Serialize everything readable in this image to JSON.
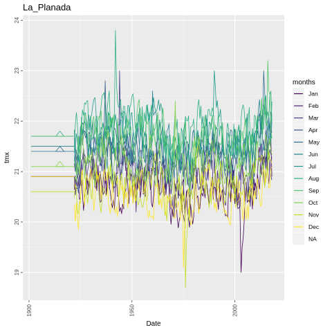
{
  "chart_data": {
    "type": "line",
    "title": "La_Planada",
    "xlabel": "Date",
    "ylabel": "tmx",
    "xlim": [
      1897,
      2024
    ],
    "ylim": [
      18.45,
      24.1
    ],
    "x_ticks": [
      1900,
      1950,
      2000
    ],
    "y_ticks": [
      19,
      20,
      21,
      22,
      23,
      24
    ],
    "grid": true,
    "legend_position": "right",
    "legend_title": "months",
    "series": [
      {
        "name": "Jan",
        "color": "#440154",
        "mean": 20.7,
        "amp": 0.55,
        "early": [
          {
            "x": [
              1901,
              1922
            ],
            "y": [
              20.9,
              20.9
            ]
          }
        ],
        "highlight": [
          2003,
          19.0
        ]
      },
      {
        "name": "Feb",
        "color": "#482173",
        "mean": 20.9,
        "amp": 0.55,
        "early": [
          {
            "x": [
              1901,
              1922
            ],
            "y": [
              20.9,
              20.9
            ]
          }
        ],
        "highlight": [
          1952,
          20.2
        ]
      },
      {
        "name": "Mar",
        "color": "#433E85",
        "mean": 21.1,
        "amp": 0.55,
        "early": [],
        "highlight": [
          1944,
          23.0
        ]
      },
      {
        "name": "Apr",
        "color": "#38598C",
        "mean": 21.4,
        "amp": 0.55,
        "early": [
          {
            "x": [
              1901,
              1922
            ],
            "y": [
              21.5,
              21.5
            ]
          }
        ],
        "highlight": [
          1937,
          22.8
        ]
      },
      {
        "name": "May",
        "color": "#2D708E",
        "mean": 21.5,
        "amp": 0.55,
        "early": [
          {
            "x": [
              1901,
              1922
            ],
            "y": [
              21.4,
              21.4
            ]
          },
          {
            "x": [
              1913,
              1915,
              1917,
              1913
            ],
            "y": [
              21.4,
              21.5,
              21.4,
              21.4
            ]
          }
        ],
        "highlight": [
          2014,
          23.0
        ]
      },
      {
        "name": "Jun",
        "color": "#25858E",
        "mean": 21.6,
        "amp": 0.55,
        "early": [
          {
            "x": [
              1901,
              1922
            ],
            "y": [
              21.5,
              21.5
            ]
          }
        ],
        "highlight": [
          1960,
          22.6
        ]
      },
      {
        "name": "Jul",
        "color": "#1E9B8A",
        "mean": 21.8,
        "amp": 0.6,
        "early": [
          {
            "x": [
              1901,
              1922
            ],
            "y": [
              21.7,
              21.7
            ]
          }
        ],
        "highlight": [
          1990,
          23.0
        ]
      },
      {
        "name": "Aug",
        "color": "#2BB07F",
        "mean": 21.9,
        "amp": 0.6,
        "early": [
          {
            "x": [
              1913,
              1915,
              1917,
              1913
            ],
            "y": [
              21.7,
              21.8,
              21.7,
              21.7
            ]
          }
        ],
        "highlight": [
          1942,
          23.8
        ]
      },
      {
        "name": "Sep",
        "color": "#51C56A",
        "mean": 21.7,
        "amp": 0.6,
        "early": [
          {
            "x": [
              1901,
              1922
            ],
            "y": [
              21.7,
              21.7
            ]
          }
        ],
        "highlight": [
          2016,
          23.2
        ]
      },
      {
        "name": "Oct",
        "color": "#85D54A",
        "mean": 21.2,
        "amp": 0.55,
        "early": [
          {
            "x": [
              1901,
              1922
            ],
            "y": [
              21.1,
              21.1
            ]
          },
          {
            "x": [
              1913,
              1915,
              1917,
              1913
            ],
            "y": [
              21.1,
              21.2,
              21.1,
              21.1
            ]
          }
        ],
        "highlight": [
          1971,
          22.4
        ]
      },
      {
        "name": "Nov",
        "color": "#C2DF23",
        "mean": 20.8,
        "amp": 0.55,
        "early": [
          {
            "x": [
              1901,
              1922
            ],
            "y": [
              20.6,
              20.6
            ]
          }
        ],
        "highlight": [
          1976,
          18.7
        ]
      },
      {
        "name": "Dec",
        "color": "#FDE725",
        "mean": 20.6,
        "amp": 0.5,
        "early": [
          {
            "x": [
              1901,
              1922
            ],
            "y": [
              20.9,
              20.9
            ]
          }
        ],
        "highlight": [
          1975,
          19.1
        ]
      },
      {
        "name": "NA",
        "color": "#EBEBEB",
        "mean": null,
        "amp": 0,
        "early": [],
        "highlight": null
      }
    ]
  }
}
